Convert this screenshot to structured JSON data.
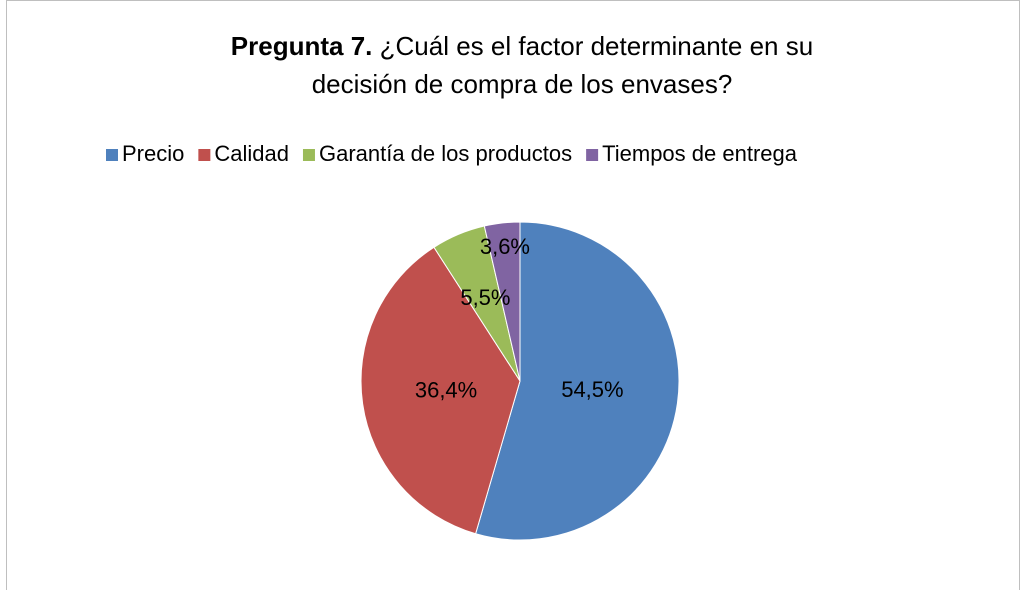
{
  "chart_data": {
    "type": "pie",
    "title": [
      "Pregunta 7.",
      "¿Cuál es el factor determinante en su",
      "decisión de compra de los envases?"
    ],
    "categories": [
      "Precio",
      "Calidad",
      "Garantía de los productos",
      "Tiempos de entrega"
    ],
    "values": [
      54.5,
      36.4,
      5.5,
      3.6
    ],
    "value_labels": [
      "54,5%",
      "36,4%",
      "5,5%",
      "3,6%"
    ],
    "colors": [
      "#4f81bd",
      "#c0504d",
      "#9bbb59",
      "#8064a2"
    ],
    "legend": "top"
  }
}
